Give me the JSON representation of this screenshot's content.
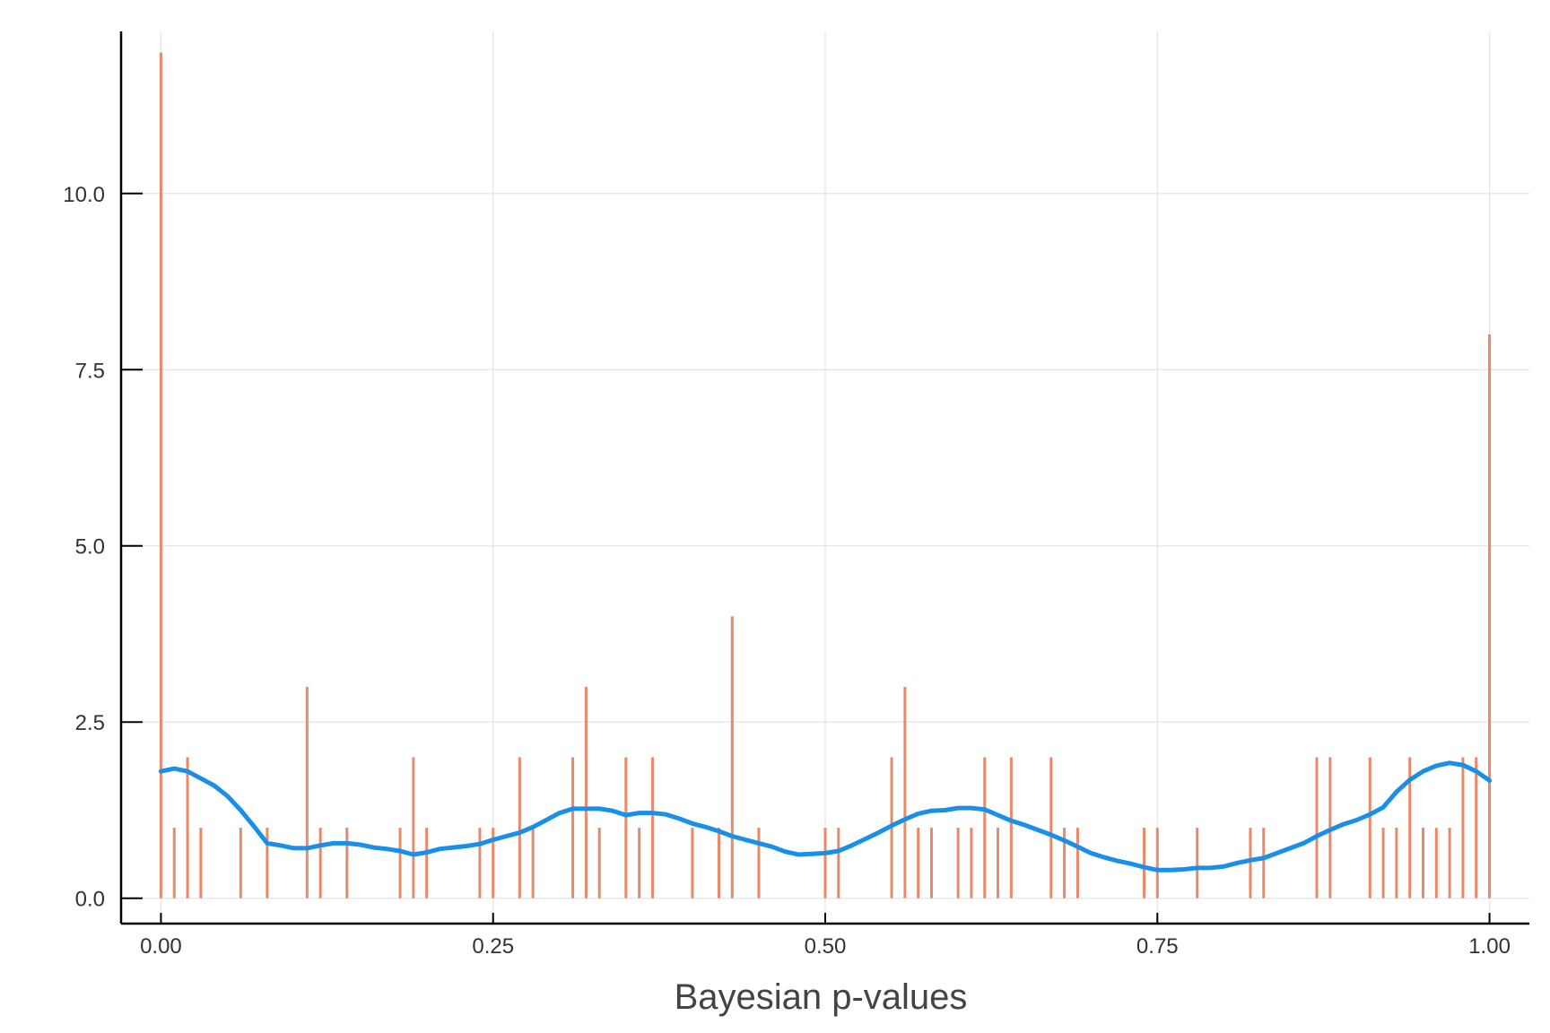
{
  "chart_data": {
    "type": "bar",
    "title": "",
    "xlabel": "Bayesian p-values",
    "ylabel": "",
    "xlim": [
      -0.03,
      1.03
    ],
    "ylim": [
      -0.36,
      12.3
    ],
    "grid": true,
    "legend": "none",
    "x_ticks": [
      {
        "value": 0,
        "label": "0.00"
      },
      {
        "value": 0.25,
        "label": "0.25"
      },
      {
        "value": 0.5,
        "label": "0.50"
      },
      {
        "value": 0.75,
        "label": "0.75"
      },
      {
        "value": 1,
        "label": "1.00"
      }
    ],
    "y_ticks": [
      {
        "value": 0,
        "label": "0.0"
      },
      {
        "value": 2.5,
        "label": "2.5"
      },
      {
        "value": 5,
        "label": "5.0"
      },
      {
        "value": 7.5,
        "label": "7.5"
      },
      {
        "value": 10,
        "label": "10.0"
      }
    ],
    "colors": {
      "bars": "#e8896a",
      "density": "#1a8fe8",
      "axis": "#000000",
      "grid": "#e5e5e5"
    },
    "series": [
      {
        "kind": "bar",
        "x": [
          0.0,
          0.01,
          0.02,
          0.03,
          0.06,
          0.08,
          0.11,
          0.12,
          0.14,
          0.18,
          0.19,
          0.2,
          0.24,
          0.25,
          0.27,
          0.28,
          0.31,
          0.32,
          0.33,
          0.35,
          0.36,
          0.37,
          0.4,
          0.42,
          0.43,
          0.45,
          0.5,
          0.51,
          0.55,
          0.56,
          0.57,
          0.58,
          0.6,
          0.61,
          0.62,
          0.63,
          0.64,
          0.67,
          0.68,
          0.69,
          0.74,
          0.75,
          0.78,
          0.82,
          0.83,
          0.87,
          0.88,
          0.91,
          0.92,
          0.93,
          0.94,
          0.95,
          0.96,
          0.97,
          0.98,
          0.99,
          1.0
        ],
        "values": [
          12,
          1,
          2,
          1,
          1,
          1,
          3,
          1,
          1,
          1,
          2,
          1,
          1,
          1,
          2,
          1,
          2,
          3,
          1,
          2,
          1,
          2,
          1,
          1,
          4,
          1,
          1,
          1,
          2,
          3,
          1,
          1,
          1,
          1,
          2,
          1,
          2,
          2,
          1,
          1,
          1,
          1,
          1,
          1,
          1,
          2,
          2,
          2,
          1,
          1,
          2,
          1,
          1,
          1,
          2,
          2,
          8
        ]
      },
      {
        "kind": "line",
        "x": [
          0.0,
          0.01,
          0.02,
          0.03,
          0.04,
          0.05,
          0.06,
          0.07,
          0.08,
          0.09,
          0.1,
          0.11,
          0.12,
          0.13,
          0.14,
          0.15,
          0.16,
          0.17,
          0.18,
          0.19,
          0.2,
          0.21,
          0.22,
          0.23,
          0.24,
          0.25,
          0.26,
          0.27,
          0.28,
          0.29,
          0.3,
          0.31,
          0.32,
          0.33,
          0.34,
          0.35,
          0.36,
          0.37,
          0.38,
          0.39,
          0.4,
          0.41,
          0.42,
          0.43,
          0.44,
          0.45,
          0.46,
          0.47,
          0.48,
          0.49,
          0.5,
          0.51,
          0.52,
          0.53,
          0.54,
          0.55,
          0.56,
          0.57,
          0.58,
          0.59,
          0.6,
          0.61,
          0.62,
          0.63,
          0.64,
          0.65,
          0.66,
          0.67,
          0.68,
          0.69,
          0.7,
          0.71,
          0.72,
          0.73,
          0.74,
          0.75,
          0.76,
          0.77,
          0.78,
          0.79,
          0.8,
          0.81,
          0.82,
          0.83,
          0.84,
          0.85,
          0.86,
          0.87,
          0.88,
          0.89,
          0.9,
          0.91,
          0.92,
          0.93,
          0.94,
          0.95,
          0.96,
          0.97,
          0.98,
          0.99,
          1.0
        ],
        "values": [
          1.8,
          1.84,
          1.8,
          1.7,
          1.6,
          1.45,
          1.25,
          1.02,
          0.78,
          0.75,
          0.71,
          0.71,
          0.75,
          0.78,
          0.78,
          0.76,
          0.72,
          0.7,
          0.67,
          0.62,
          0.65,
          0.7,
          0.72,
          0.74,
          0.77,
          0.83,
          0.88,
          0.93,
          1.01,
          1.11,
          1.21,
          1.27,
          1.27,
          1.27,
          1.24,
          1.18,
          1.21,
          1.21,
          1.19,
          1.13,
          1.06,
          1.01,
          0.95,
          0.88,
          0.83,
          0.78,
          0.73,
          0.66,
          0.62,
          0.63,
          0.64,
          0.67,
          0.75,
          0.84,
          0.93,
          1.03,
          1.12,
          1.2,
          1.24,
          1.25,
          1.28,
          1.28,
          1.26,
          1.18,
          1.1,
          1.04,
          0.97,
          0.9,
          0.82,
          0.73,
          0.64,
          0.58,
          0.53,
          0.49,
          0.44,
          0.4,
          0.4,
          0.41,
          0.43,
          0.43,
          0.45,
          0.5,
          0.54,
          0.57,
          0.64,
          0.71,
          0.78,
          0.88,
          0.97,
          1.05,
          1.11,
          1.19,
          1.29,
          1.51,
          1.68,
          1.8,
          1.88,
          1.92,
          1.89,
          1.8,
          1.67
        ]
      }
    ]
  }
}
